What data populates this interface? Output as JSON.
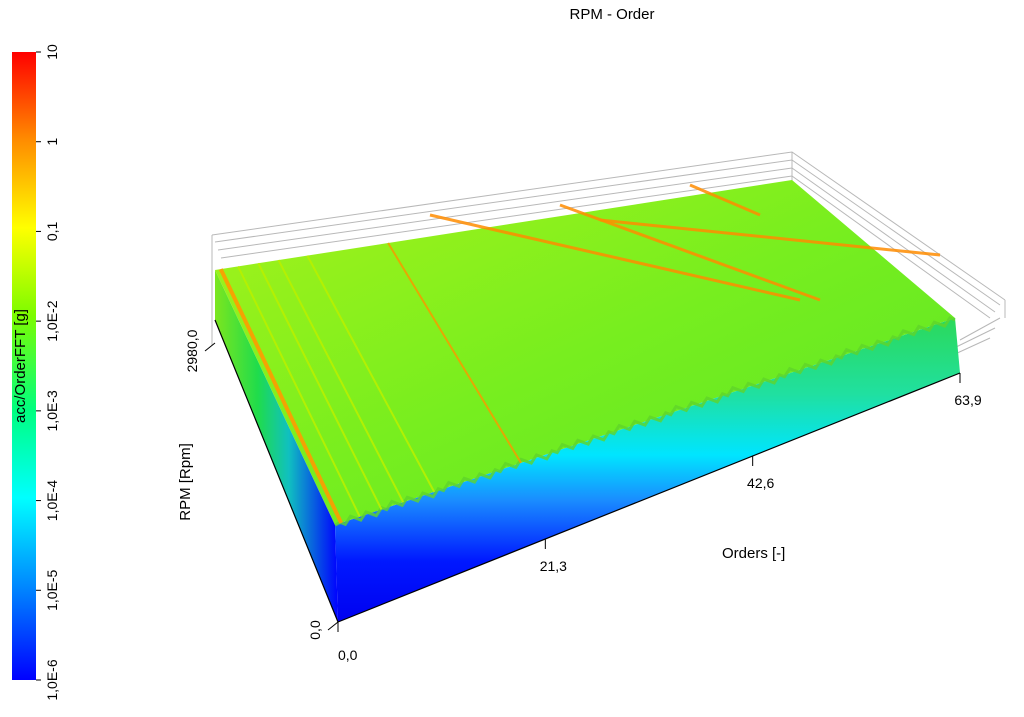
{
  "chart_data": {
    "type": "surface3d",
    "title": "RPM - Order",
    "xlabel": "Orders [-]",
    "ylabel": "RPM [Rpm]",
    "zlabel": "acc/OrderFFT [g]",
    "x_range": [
      0.0,
      63.9
    ],
    "y_range": [
      0.0,
      2980.0
    ],
    "z_scale": "log",
    "z_range": [
      1e-06,
      10
    ],
    "x_ticks": [
      "0,0",
      "21,3",
      "42,6",
      "63,9"
    ],
    "y_ticks": [
      "0,0",
      "2980,0"
    ],
    "colorbar": {
      "ticks": [
        "10",
        "1",
        "0,1",
        "1,0E-2",
        "1,0E-3",
        "1,0E-4",
        "1,0E-5",
        "1,0E-6"
      ],
      "colors": [
        "#ff0000",
        "#ff8c00",
        "#ffff00",
        "#7cfc00",
        "#00ff7f",
        "#00ffff",
        "#0080ff",
        "#0000ff"
      ]
    },
    "surface": {
      "base_level": 1e-06,
      "typical_level": 0.01,
      "order_lines_peak": [
        1,
        2,
        3,
        6.5,
        16
      ],
      "diagonal_resonance_peak": 1
    }
  }
}
